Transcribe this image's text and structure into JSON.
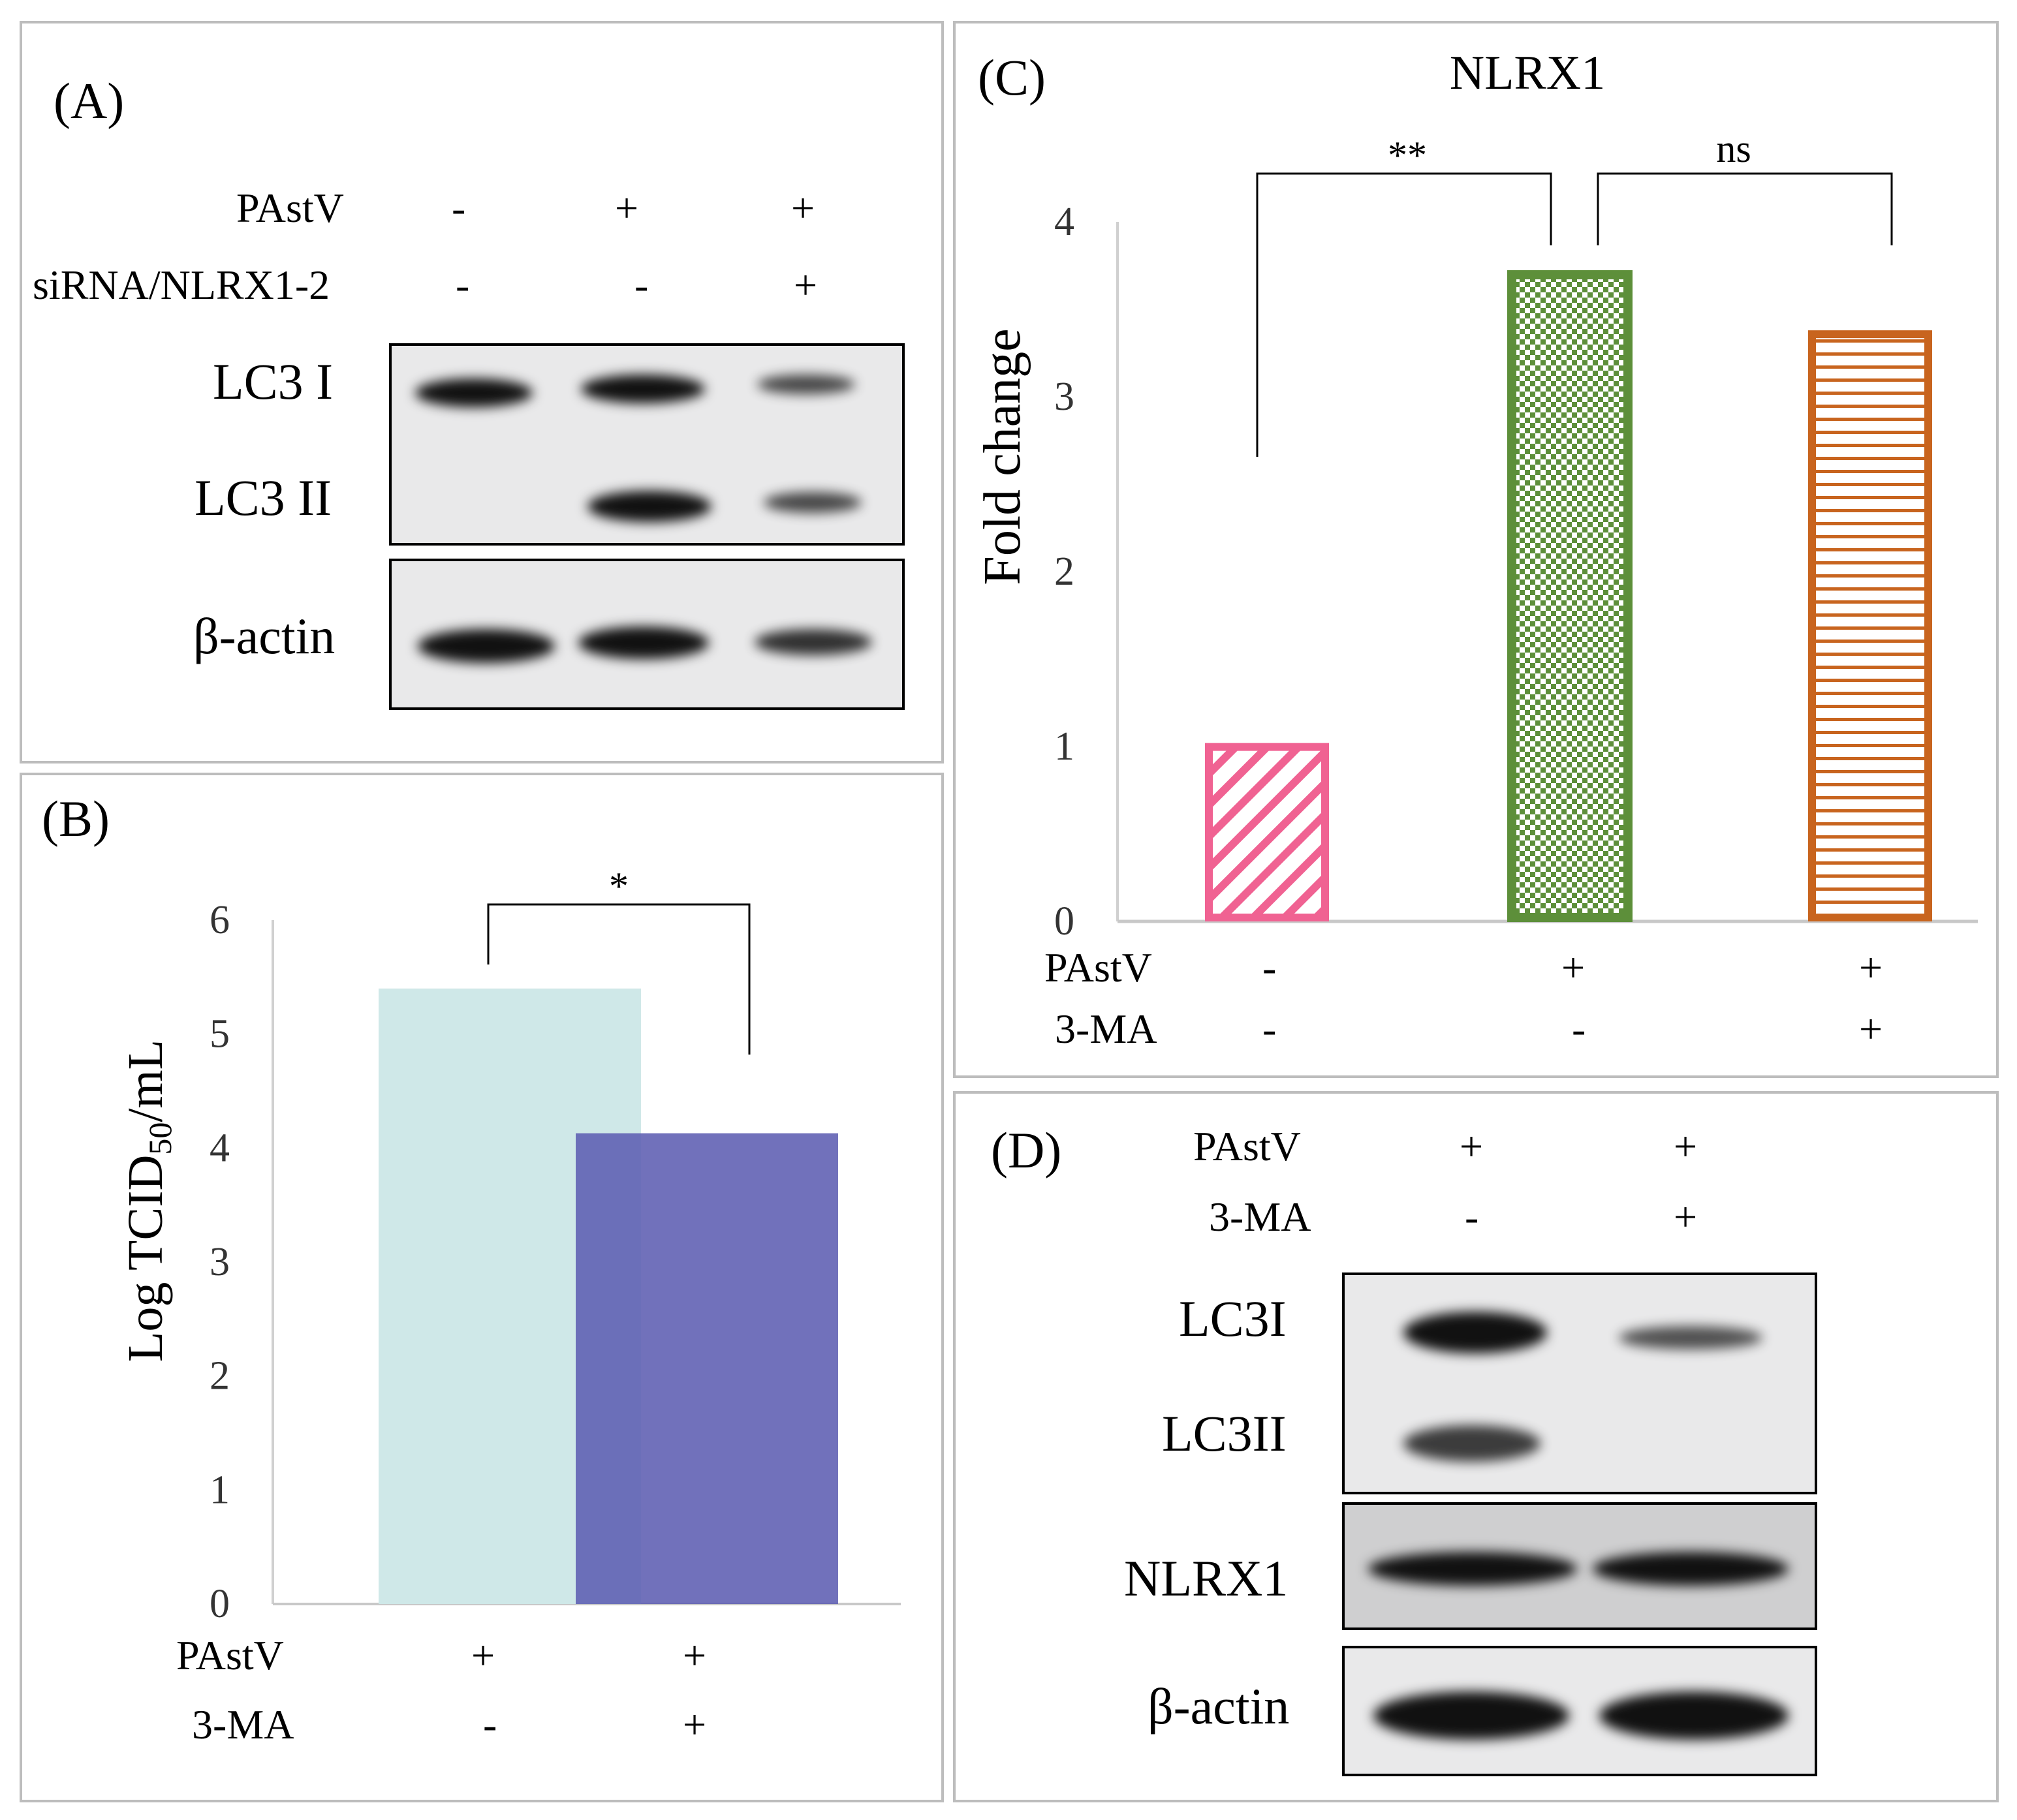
{
  "panelA": {
    "label": "(A)",
    "rows": [
      {
        "name": "PAstV",
        "values": [
          "-",
          "+",
          "+"
        ]
      },
      {
        "name": "siRNA/NLRX1-2",
        "values": [
          "-",
          "-",
          "+"
        ]
      }
    ],
    "blot_labels": [
      "LC3 I",
      "LC3 II",
      "β-actin"
    ]
  },
  "panelB": {
    "label": "(B)",
    "rows": [
      {
        "name": "PAstV",
        "values": [
          "+",
          "+"
        ]
      },
      {
        "name": "3-MA",
        "values": [
          "-",
          "+"
        ]
      }
    ],
    "ylabel_main": "Log TCID",
    "ylabel_sub": "50",
    "ylabel_tail": "/mL",
    "significance": "*"
  },
  "panelC": {
    "label": "(C)",
    "rows": [
      {
        "name": "PAstV",
        "values": [
          "-",
          "+",
          "+"
        ]
      },
      {
        "name": "3-MA",
        "values": [
          "-",
          "-",
          "+"
        ]
      }
    ],
    "significance": [
      "**",
      "ns"
    ]
  },
  "panelD": {
    "label": "(D)",
    "rows": [
      {
        "name": "PAstV",
        "values": [
          "+",
          "+"
        ]
      },
      {
        "name": "3-MA",
        "values": [
          "-",
          "+"
        ]
      }
    ],
    "blot_labels": [
      "LC3I",
      "LC3II",
      "NLRX1",
      "β-actin"
    ]
  },
  "chart_data": [
    {
      "panel": "B",
      "type": "bar",
      "categories": [
        "PAstV +, 3-MA -",
        "PAstV +, 3-MA +"
      ],
      "values": [
        5.4,
        4.13
      ],
      "ylabel": "Log TCID50/mL",
      "ylim": [
        0,
        6
      ],
      "yticks": [
        "0",
        "1",
        "2",
        "3",
        "4",
        "5",
        "6"
      ],
      "colors": [
        "#cfe8e8",
        "#5d5db2"
      ]
    },
    {
      "panel": "C",
      "type": "bar",
      "title": "NLRX1",
      "categories": [
        "control",
        "PAstV",
        "PAstV + 3-MA"
      ],
      "values": [
        1.02,
        3.72,
        3.38
      ],
      "ylabel": "Fold change",
      "ylim": [
        0,
        4
      ],
      "yticks": [
        "0",
        "1",
        "2",
        "3",
        "4"
      ],
      "colors": [
        "#f06292",
        "#5d8f3a",
        "#c8641e"
      ]
    }
  ]
}
